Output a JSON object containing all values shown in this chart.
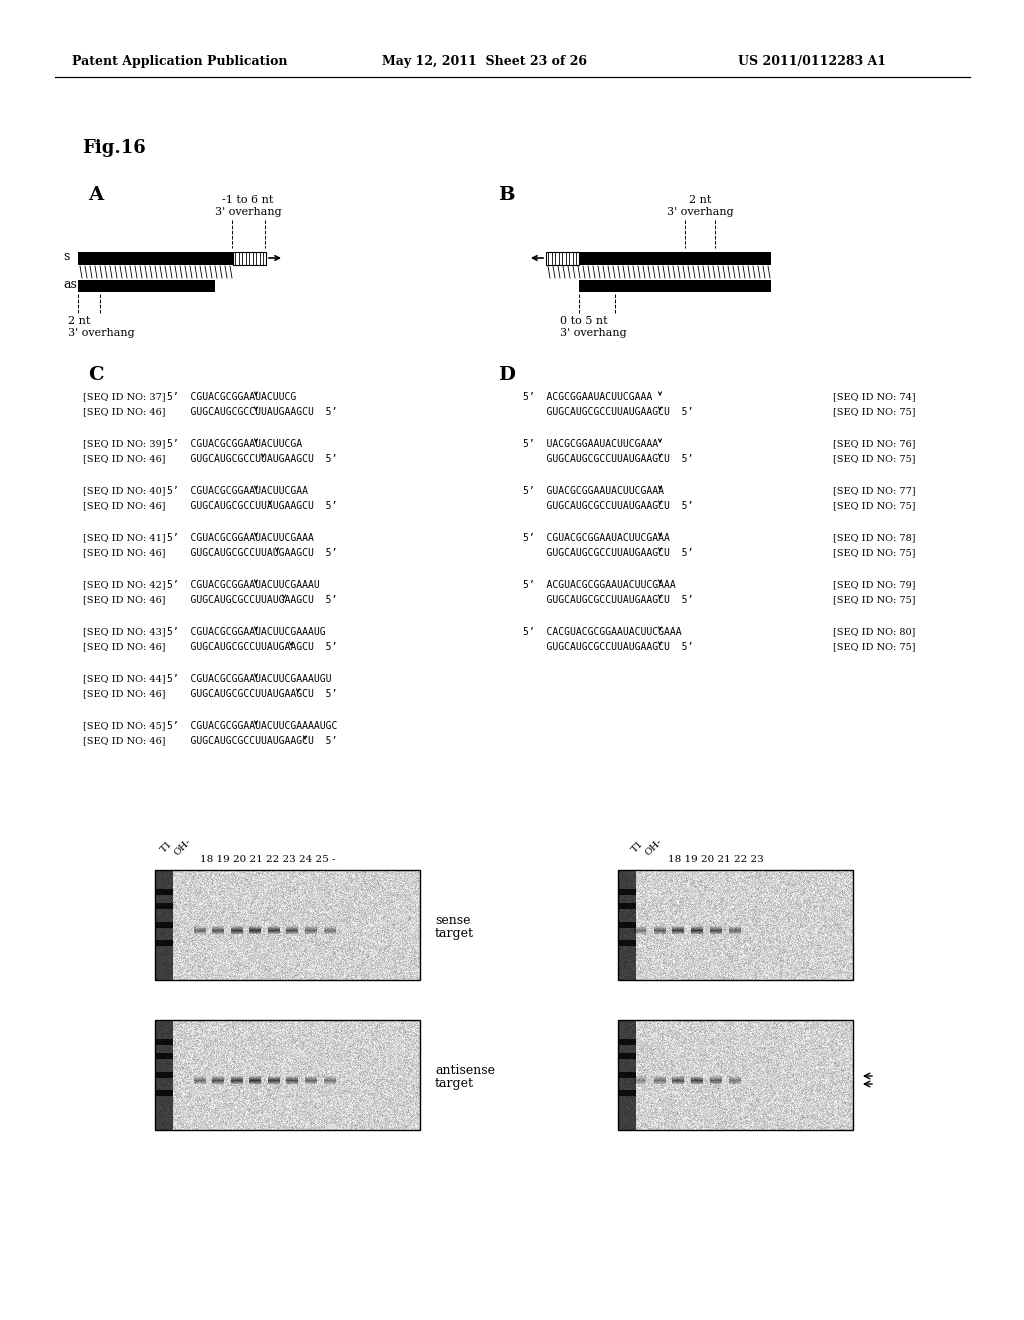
{
  "header_left": "Patent Application Publication",
  "header_mid": "May 12, 2011  Sheet 23 of 26",
  "header_right": "US 2011/0112283 A1",
  "fig_label": "Fig.16",
  "bg_color": "#ffffff",
  "seq_C": [
    [
      "[SEQ ID NO: 37]",
      "5’  CGUACGCGGAAUACUUCG",
      "[SEQ ID NO: 46]",
      "    GUGCAUGCGCCUUAUGAAGCU  5’"
    ],
    [
      "[SEQ ID NO: 39]",
      "5’  CGUACGCGGAAUACUUCGA",
      "[SEQ ID NO: 46]",
      "    GUGCAUGCGCCUUAUGAAGCU  5’"
    ],
    [
      "[SEQ ID NO: 40]",
      "5’  CGUACGCGGAAUACUUCGAA",
      "[SEQ ID NO: 46]",
      "    GUGCAUGCGCCUUAUGAAGCU  5’"
    ],
    [
      "[SEQ ID NO: 41]",
      "5’  CGUACGCGGAAUACUUCGAAA",
      "[SEQ ID NO: 46]",
      "    GUGCAUGCGCCUUAUGAAGCU  5’"
    ],
    [
      "[SEQ ID NO: 42]",
      "5’  CGUACGCGGAAUACUUCGAAAU",
      "[SEQ ID NO: 46]",
      "    GUGCAUGCGCCUUAUGAAGCU  5’"
    ],
    [
      "[SEQ ID NO: 43]",
      "5’  CGUACGCGGAAUACUUCGAAAUG",
      "[SEQ ID NO: 46]",
      "    GUGCAUGCGCCUUAUGAAGCU  5’"
    ],
    [
      "[SEQ ID NO: 44]",
      "5’  CGUACGCGGAAUACUUCGAAAUGU",
      "[SEQ ID NO: 46]",
      "    GUGCAUGCGCCUUAUGAAGCU  5’"
    ],
    [
      "[SEQ ID NO: 45]",
      "5’  CGUACGCGGAAUACUUCGAAAAUGC",
      "[SEQ ID NO: 46]",
      "    GUGCAUGCGCCUUAUGAAGCU  5’"
    ]
  ],
  "seq_D": [
    [
      "5’  ACGCGGAAUACUUCGAAA",
      "    GUGCAUGCGCCUUAUGAAGCU  5’",
      "[SEQ ID NO: 74]",
      "[SEQ ID NO: 75]"
    ],
    [
      "5’  UACGCGGAAUACUUCGAAA",
      "    GUGCAUGCGCCUUAUGAAGCU  5’",
      "[SEQ ID NO: 76]",
      "[SEQ ID NO: 75]"
    ],
    [
      "5’  GUACGCGGAAUACUUCGAAA",
      "    GUGCAUGCGCCUUAUGAAGCU  5’",
      "[SEQ ID NO: 77]",
      "[SEQ ID NO: 75]"
    ],
    [
      "5’  CGUACGCGGAAUACUUCGAAA",
      "    GUGCAUGCGCCUUAUGAAGCU  5’",
      "[SEQ ID NO: 78]",
      "[SEQ ID NO: 75]"
    ],
    [
      "5’  ACGUACGCGGAAUACUUCGAAA",
      "    GUGCAUGCGCCUUAUGAAGCU  5’",
      "[SEQ ID NO: 79]",
      "[SEQ ID NO: 75]"
    ],
    [
      "5’  CACGUACGCGGAAUACUUCGAAA",
      "    GUGCAUGCGCCUUAUGAAGCU  5’",
      "[SEQ ID NO: 80]",
      "[SEQ ID NO: 75]"
    ]
  ]
}
